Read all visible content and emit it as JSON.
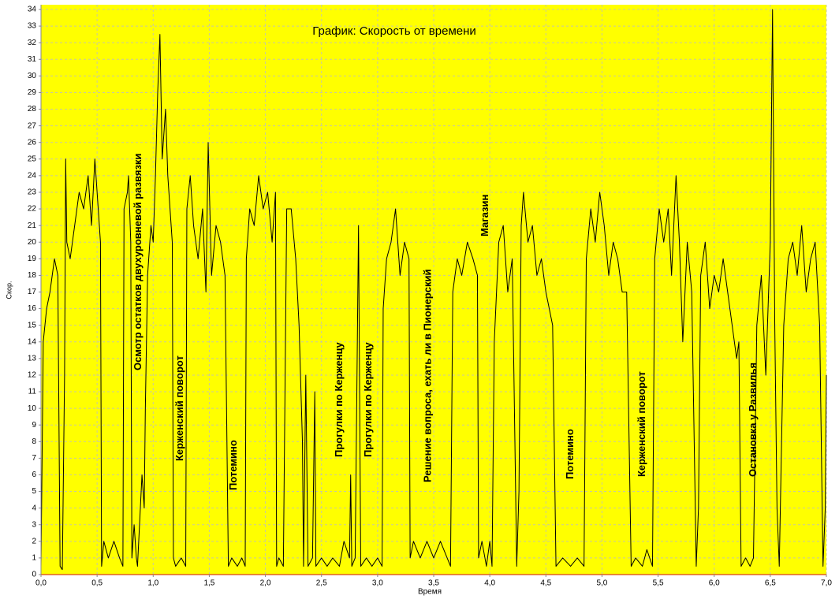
{
  "chart_data": {
    "type": "line",
    "title": "График: Скорость от времени",
    "x_label": "Время",
    "y_label": "Скор.",
    "xlim": [
      0,
      7
    ],
    "ylim": [
      0,
      34
    ],
    "xticks": [
      {
        "value": 0,
        "label": "0,0"
      },
      {
        "value": 0.5,
        "label": "0,5"
      },
      {
        "value": 1,
        "label": "1,0"
      },
      {
        "value": 1.5,
        "label": "1,5"
      },
      {
        "value": 2,
        "label": "2,0"
      },
      {
        "value": 2.5,
        "label": "2,5"
      },
      {
        "value": 3,
        "label": "3,0"
      },
      {
        "value": 3.5,
        "label": "3,5"
      },
      {
        "value": 4,
        "label": "4,0"
      },
      {
        "value": 4.5,
        "label": "4,5"
      },
      {
        "value": 5,
        "label": "5,0"
      },
      {
        "value": 5.5,
        "label": "5,5"
      },
      {
        "value": 6,
        "label": "6,0"
      },
      {
        "value": 6.5,
        "label": "6,5"
      },
      {
        "value": 7,
        "label": "7,0"
      }
    ],
    "yticks": [
      0,
      1,
      2,
      3,
      4,
      5,
      6,
      7,
      8,
      9,
      10,
      11,
      12,
      13,
      14,
      15,
      16,
      17,
      18,
      19,
      20,
      21,
      22,
      23,
      24,
      25,
      26,
      27,
      28,
      29,
      30,
      31,
      32,
      33,
      34
    ],
    "grid": true,
    "background": "#ffff00",
    "x": [
      0,
      0.02,
      0.05,
      0.08,
      0.12,
      0.15,
      0.17,
      0.19,
      0.21,
      0.22,
      0.23,
      0.26,
      0.3,
      0.34,
      0.38,
      0.42,
      0.45,
      0.48,
      0.51,
      0.53,
      0.54,
      0.56,
      0.6,
      0.65,
      0.7,
      0.73,
      0.74,
      0.77,
      0.78,
      0.8,
      0.81,
      0.83,
      0.85,
      0.86,
      0.9,
      0.92,
      0.93,
      0.95,
      0.98,
      1.0,
      1.02,
      1.04,
      1.06,
      1.08,
      1.11,
      1.13,
      1.17,
      1.18,
      1.2,
      1.25,
      1.29,
      1.3,
      1.33,
      1.36,
      1.4,
      1.44,
      1.47,
      1.49,
      1.52,
      1.56,
      1.6,
      1.64,
      1.67,
      1.7,
      1.75,
      1.79,
      1.82,
      1.83,
      1.86,
      1.9,
      1.94,
      1.98,
      2.02,
      2.06,
      2.09,
      2.1,
      2.12,
      2.16,
      2.19,
      2.23,
      2.27,
      2.3,
      2.33,
      2.34,
      2.36,
      2.38,
      2.42,
      2.44,
      2.45,
      2.5,
      2.55,
      2.6,
      2.66,
      2.7,
      2.75,
      2.76,
      2.77,
      2.8,
      2.83,
      2.85,
      2.9,
      2.95,
      3.0,
      3.04,
      3.05,
      3.08,
      3.12,
      3.16,
      3.2,
      3.24,
      3.28,
      3.29,
      3.32,
      3.38,
      3.44,
      3.5,
      3.56,
      3.62,
      3.65,
      3.67,
      3.71,
      3.75,
      3.8,
      3.85,
      3.89,
      3.9,
      3.93,
      3.97,
      4.0,
      4.02,
      4.04,
      4.08,
      4.12,
      4.16,
      4.2,
      4.24,
      4.26,
      4.28,
      4.3,
      4.34,
      4.38,
      4.42,
      4.46,
      4.5,
      4.53,
      4.56,
      4.59,
      4.65,
      4.72,
      4.78,
      4.84,
      4.86,
      4.9,
      4.94,
      4.98,
      5.02,
      5.06,
      5.1,
      5.14,
      5.18,
      5.22,
      5.26,
      5.3,
      5.36,
      5.4,
      5.45,
      5.47,
      5.51,
      5.55,
      5.59,
      5.62,
      5.66,
      5.69,
      5.72,
      5.76,
      5.8,
      5.84,
      5.86,
      5.88,
      5.92,
      5.96,
      6.0,
      6.04,
      6.08,
      6.12,
      6.16,
      6.2,
      6.22,
      6.24,
      6.28,
      6.32,
      6.35,
      6.38,
      6.42,
      6.46,
      6.5,
      6.52,
      6.54,
      6.56,
      6.58,
      6.62,
      6.66,
      6.7,
      6.74,
      6.78,
      6.82,
      6.86,
      6.9,
      6.94,
      6.97,
      6.99,
      7.0
    ],
    "series": [
      {
        "color": "#000000",
        "values": [
          0.5,
          14,
          16,
          17,
          19,
          18,
          0.5,
          0.3,
          12,
          25,
          20,
          19,
          21,
          23,
          22,
          24,
          21,
          25,
          22,
          20,
          0.5,
          2,
          1,
          2,
          1,
          0.5,
          22,
          23,
          24,
          20,
          1,
          3,
          1,
          0.5,
          6,
          4,
          10,
          18,
          21,
          20,
          24,
          29,
          32.5,
          25,
          28,
          24,
          20,
          1,
          0.5,
          1,
          0.5,
          22,
          24,
          21,
          19,
          22,
          17,
          26,
          18,
          21,
          20,
          18,
          0.5,
          1,
          0.5,
          1,
          0.5,
          19,
          22,
          21,
          24,
          22,
          23,
          20,
          23,
          0.5,
          1,
          0.5,
          22,
          22,
          19,
          15,
          8,
          0.5,
          12,
          0.5,
          1,
          11,
          0.5,
          1,
          0.5,
          1,
          0.5,
          2,
          1,
          6,
          0.5,
          1,
          21,
          0.5,
          1,
          0.5,
          1,
          0.5,
          16,
          19,
          20,
          22,
          18,
          20,
          19,
          1,
          2,
          1,
          2,
          1,
          2,
          1,
          0.5,
          17,
          19,
          18,
          20,
          19,
          18,
          1,
          2,
          0.5,
          2,
          0.5,
          14,
          20,
          21,
          17,
          19,
          0.5,
          5,
          21,
          23,
          20,
          21,
          18,
          19,
          17,
          16,
          15,
          0.5,
          1,
          0.5,
          1,
          0.5,
          19,
          22,
          20,
          23,
          21,
          18,
          20,
          19,
          17,
          17,
          0.5,
          1,
          0.5,
          1.5,
          0.5,
          19,
          22,
          20,
          22,
          18,
          24,
          20,
          14,
          20,
          17,
          0.5,
          4,
          18,
          20,
          16,
          18,
          17,
          19,
          17,
          15,
          13,
          14,
          0.5,
          1,
          0.5,
          1,
          15,
          18,
          12,
          20,
          34,
          15,
          4,
          0.5,
          15,
          19,
          20,
          18,
          21,
          17,
          19,
          20,
          15,
          0.5,
          4,
          12
        ]
      }
    ],
    "annotations": [
      {
        "text": "Осмотр остатков двухуровневой развязки",
        "x": 0.87
      },
      {
        "text": "Керженский поворот",
        "x": 1.24
      },
      {
        "text": "Потемино",
        "x": 1.72
      },
      {
        "text": "Прогулки по Керженцу",
        "x": 2.66
      },
      {
        "text": "Прогулки по Керженцу",
        "x": 2.92
      },
      {
        "text": "Решение вопроса, ехать ли в Пионерский",
        "x": 3.45
      },
      {
        "text": "Магазин",
        "x": 3.96
      },
      {
        "text": "Потемино",
        "x": 4.72
      },
      {
        "text": "Керженский поворот",
        "x": 5.36
      },
      {
        "text": "Остановка у Развилья",
        "x": 6.35
      }
    ]
  }
}
